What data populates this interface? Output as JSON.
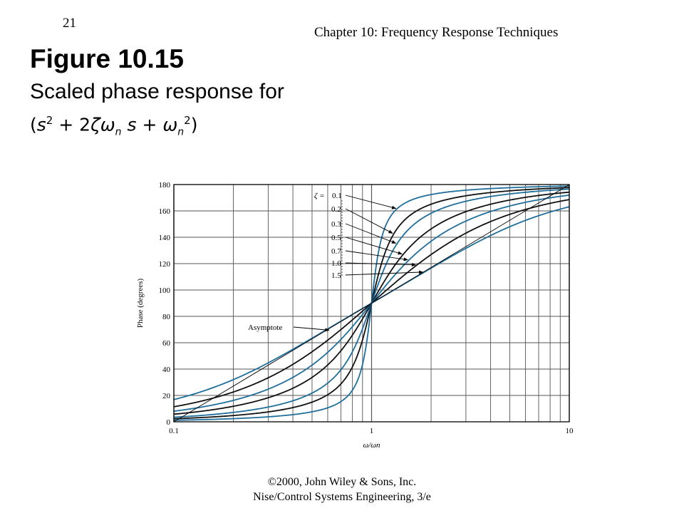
{
  "header": {
    "page_number": "21",
    "chapter": "Chapter 10: Frequency Response Techniques"
  },
  "title": {
    "figure": "Figure 10.15",
    "subtitle": "Scaled phase response for"
  },
  "formula": {
    "open": "(",
    "s": "s",
    "s_exp": "2",
    "plus1": " + 2",
    "zeta": "ζ",
    "omega": "ω",
    "sub_n": "n",
    "s2": " s",
    "plus2": " + ",
    "omega2": "ω",
    "sub_n2": "n",
    "exp2": "2",
    "close": ")"
  },
  "footer": {
    "line1": "©2000, John Wiley & Sons, Inc.",
    "line2": "Nise/Control Systems Engineering, 3/e"
  },
  "colors": {
    "blue": "#1f6e9c",
    "black": "#111111",
    "grid": "#555555"
  },
  "chart_data": {
    "type": "line",
    "xscale": "log",
    "xlim": [
      0.1,
      10
    ],
    "ylim": [
      0,
      180
    ],
    "xlabel": "ω/ωn",
    "ylabel": "Phase (degrees)",
    "xticks": [
      "0.1",
      "1",
      "10"
    ],
    "yticks": [
      "0",
      "20",
      "40",
      "60",
      "80",
      "100",
      "120",
      "140",
      "160",
      "180"
    ],
    "grid": true,
    "series": [
      {
        "zeta": 0.1,
        "color": "blue"
      },
      {
        "zeta": 0.2,
        "color": "black"
      },
      {
        "zeta": 0.3,
        "color": "blue"
      },
      {
        "zeta": 0.5,
        "color": "black"
      },
      {
        "zeta": 0.7,
        "color": "blue"
      },
      {
        "zeta": 1.0,
        "color": "black"
      },
      {
        "zeta": 1.5,
        "color": "blue"
      }
    ],
    "asymptote": {
      "label": "Asymptote",
      "points": [
        [
          0.1,
          0
        ],
        [
          10,
          180
        ]
      ]
    },
    "legend_title": "ζ =",
    "legend_labels": [
      "0.1",
      "0.2",
      "0.3",
      "0.5",
      "0.7",
      "1.0",
      "1.5"
    ]
  }
}
